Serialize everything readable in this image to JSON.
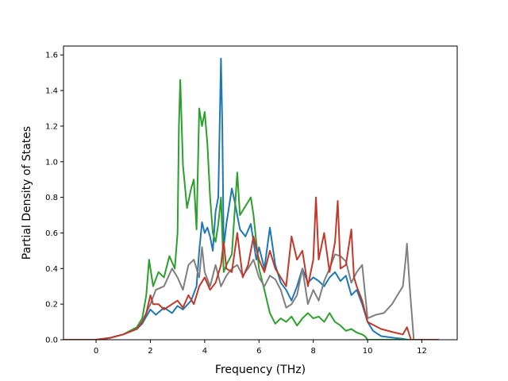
{
  "chart_data": {
    "type": "line",
    "title": "",
    "xlabel": "Frequency (THz)",
    "ylabel": "Partial Density of States",
    "xlim": [
      -1.2,
      13.3
    ],
    "ylim": [
      0.0,
      1.65
    ],
    "xticks": [
      0,
      2,
      4,
      6,
      8,
      10,
      12
    ],
    "yticks": [
      0.0,
      0.2,
      0.4,
      0.6,
      0.8,
      1.0,
      1.2,
      1.4,
      1.6
    ],
    "xtick_labels": [
      "0",
      "2",
      "4",
      "6",
      "8",
      "10",
      "12"
    ],
    "ytick_labels": [
      "0.0",
      "0.2",
      "0.4",
      "0.6",
      "0.8",
      "1.0",
      "1.2",
      "1.4",
      "1.6"
    ],
    "grid": false,
    "legend": "none",
    "series": [
      {
        "color": "#1f77b4",
        "x": [
          -1.2,
          0,
          0.5,
          1.0,
          1.5,
          1.7,
          1.85,
          2.0,
          2.2,
          2.5,
          2.8,
          3.0,
          3.2,
          3.5,
          3.7,
          3.8,
          3.9,
          4.0,
          4.1,
          4.2,
          4.3,
          4.4,
          4.5,
          4.6,
          4.65,
          4.7,
          4.8,
          5.0,
          5.1,
          5.3,
          5.5,
          5.7,
          5.9,
          6.0,
          6.2,
          6.4,
          6.6,
          6.8,
          7.0,
          7.2,
          7.4,
          7.6,
          7.8,
          8.0,
          8.2,
          8.4,
          8.6,
          8.8,
          9.0,
          9.2,
          9.4,
          9.6,
          9.8,
          10.0,
          10.2,
          10.5,
          11.0,
          11.3,
          11.5,
          11.7,
          12.6
        ],
        "y": [
          0.0,
          0.0,
          0.01,
          0.03,
          0.06,
          0.09,
          0.13,
          0.17,
          0.14,
          0.18,
          0.15,
          0.19,
          0.17,
          0.22,
          0.3,
          0.5,
          0.66,
          0.6,
          0.63,
          0.58,
          0.5,
          0.72,
          0.8,
          1.58,
          1.2,
          0.52,
          0.65,
          0.85,
          0.78,
          0.62,
          0.58,
          0.65,
          0.45,
          0.52,
          0.4,
          0.63,
          0.42,
          0.32,
          0.28,
          0.22,
          0.3,
          0.4,
          0.32,
          0.35,
          0.33,
          0.3,
          0.35,
          0.38,
          0.33,
          0.36,
          0.25,
          0.28,
          0.2,
          0.1,
          0.05,
          0.02,
          0.01,
          0.005,
          0.0,
          0.0,
          0.0
        ]
      },
      {
        "color": "#2ca02c",
        "x": [
          -1.2,
          0,
          0.5,
          1.0,
          1.5,
          1.7,
          1.85,
          1.95,
          2.1,
          2.3,
          2.5,
          2.7,
          2.9,
          3.0,
          3.05,
          3.1,
          3.2,
          3.35,
          3.5,
          3.6,
          3.7,
          3.8,
          3.9,
          4.0,
          4.1,
          4.2,
          4.3,
          4.4,
          4.5,
          4.6,
          4.7,
          4.8,
          5.0,
          5.2,
          5.3,
          5.5,
          5.7,
          5.8,
          6.0,
          6.2,
          6.4,
          6.6,
          6.8,
          7.0,
          7.2,
          7.4,
          7.6,
          7.8,
          8.0,
          8.2,
          8.4,
          8.6,
          8.8,
          9.0,
          9.2,
          9.4,
          9.6,
          9.8,
          9.9,
          10.0,
          10.5,
          12.6
        ],
        "y": [
          0.0,
          0.0,
          0.01,
          0.03,
          0.07,
          0.12,
          0.25,
          0.45,
          0.3,
          0.38,
          0.35,
          0.47,
          0.4,
          0.6,
          1.2,
          1.46,
          0.98,
          0.74,
          0.85,
          0.9,
          0.62,
          1.3,
          1.2,
          1.28,
          1.1,
          0.8,
          0.6,
          0.55,
          0.65,
          0.8,
          0.38,
          0.42,
          0.48,
          0.94,
          0.7,
          0.75,
          0.8,
          0.7,
          0.4,
          0.28,
          0.15,
          0.09,
          0.12,
          0.1,
          0.13,
          0.08,
          0.12,
          0.15,
          0.12,
          0.13,
          0.1,
          0.15,
          0.1,
          0.08,
          0.05,
          0.06,
          0.04,
          0.03,
          0.02,
          0.0,
          0.0,
          0.0
        ]
      },
      {
        "color": "#7f7f7f",
        "x": [
          -1.2,
          0,
          0.5,
          1.0,
          1.5,
          1.7,
          1.85,
          2.0,
          2.2,
          2.5,
          2.8,
          3.0,
          3.2,
          3.4,
          3.6,
          3.8,
          3.9,
          4.0,
          4.2,
          4.4,
          4.6,
          4.8,
          5.0,
          5.2,
          5.4,
          5.6,
          5.8,
          6.0,
          6.2,
          6.4,
          6.6,
          6.8,
          7.0,
          7.2,
          7.4,
          7.6,
          7.8,
          8.0,
          8.2,
          8.4,
          8.6,
          8.8,
          9.0,
          9.2,
          9.4,
          9.6,
          9.8,
          10.0,
          10.3,
          10.6,
          10.9,
          11.1,
          11.3,
          11.4,
          11.45,
          11.55,
          11.7,
          12.6
        ],
        "y": [
          0.0,
          0.0,
          0.01,
          0.03,
          0.06,
          0.1,
          0.15,
          0.2,
          0.28,
          0.3,
          0.4,
          0.35,
          0.28,
          0.42,
          0.45,
          0.35,
          0.52,
          0.38,
          0.3,
          0.42,
          0.3,
          0.36,
          0.4,
          0.42,
          0.36,
          0.4,
          0.45,
          0.35,
          0.3,
          0.36,
          0.34,
          0.28,
          0.18,
          0.2,
          0.25,
          0.4,
          0.2,
          0.28,
          0.22,
          0.33,
          0.4,
          0.48,
          0.47,
          0.44,
          0.32,
          0.38,
          0.42,
          0.12,
          0.14,
          0.15,
          0.2,
          0.25,
          0.3,
          0.45,
          0.54,
          0.3,
          0.0,
          0.0
        ]
      },
      {
        "color": "#c0392b",
        "x": [
          -1.2,
          0,
          0.5,
          1.0,
          1.5,
          1.7,
          1.85,
          2.0,
          2.1,
          2.3,
          2.5,
          2.8,
          3.0,
          3.2,
          3.4,
          3.6,
          3.8,
          4.0,
          4.2,
          4.4,
          4.6,
          4.7,
          4.8,
          5.0,
          5.2,
          5.4,
          5.6,
          5.8,
          6.0,
          6.2,
          6.4,
          6.6,
          6.8,
          7.0,
          7.2,
          7.4,
          7.6,
          7.8,
          8.0,
          8.1,
          8.2,
          8.4,
          8.6,
          8.8,
          8.9,
          9.0,
          9.2,
          9.4,
          9.5,
          9.6,
          9.8,
          10.0,
          10.5,
          11.0,
          11.3,
          11.45,
          11.6,
          12.6
        ],
        "y": [
          0.0,
          0.0,
          0.01,
          0.03,
          0.06,
          0.1,
          0.15,
          0.25,
          0.2,
          0.2,
          0.17,
          0.2,
          0.22,
          0.18,
          0.25,
          0.2,
          0.3,
          0.35,
          0.28,
          0.32,
          0.42,
          0.55,
          0.4,
          0.38,
          0.6,
          0.35,
          0.42,
          0.58,
          0.45,
          0.38,
          0.5,
          0.4,
          0.35,
          0.3,
          0.58,
          0.45,
          0.5,
          0.3,
          0.45,
          0.8,
          0.45,
          0.6,
          0.38,
          0.55,
          0.78,
          0.4,
          0.42,
          0.62,
          0.35,
          0.3,
          0.22,
          0.1,
          0.06,
          0.04,
          0.03,
          0.07,
          0.0,
          0.0
        ]
      }
    ]
  }
}
